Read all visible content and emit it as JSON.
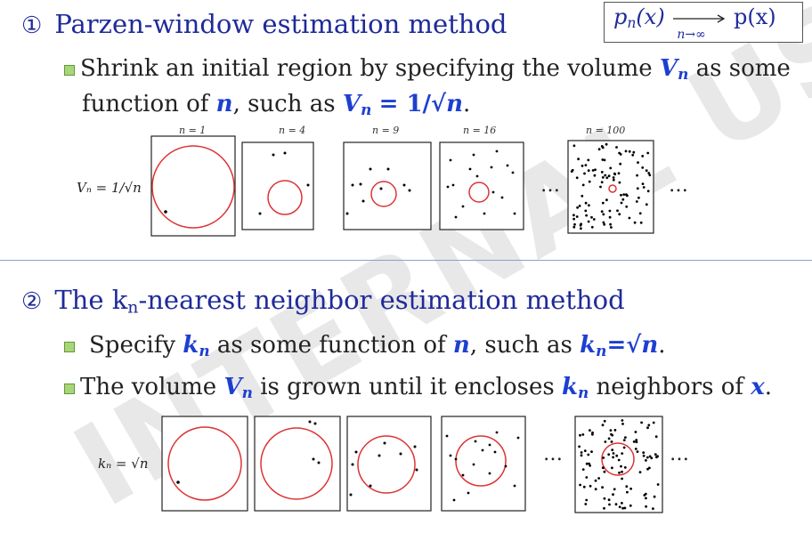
{
  "watermark": "INTERNAL USE",
  "formula": {
    "lhs": "p",
    "lhs_sub": "n",
    "lhs_arg": "(x)",
    "arrow_label": "n→∞",
    "rhs": "p(x)"
  },
  "section1": {
    "number": "①",
    "title": "Parzen-window estimation method",
    "bullet1_a": "Shrink an initial region by specifying the volume",
    "var_V": "V",
    "var_n": "n",
    "bullet1_b": "as some",
    "bullet1_c": "function of",
    "bullet1_d": ", such as",
    "bullet1_eq": "= 1/√",
    "period": ".",
    "row_label": "Vₙ = 1/√n",
    "panel_labels": [
      "n = 1",
      "n = 4",
      "n = 9",
      "n = 16",
      "n = 100"
    ],
    "ellipsis": "…"
  },
  "section2": {
    "number": "②",
    "title_a": "The k",
    "title_sub": "n",
    "title_b": "-nearest  neighbor estimation method",
    "bullet1_a": "Specify",
    "var_k": "k",
    "var_n": "n",
    "bullet1_b": "as some function of",
    "bullet1_c": ",  such as",
    "bullet1_eq": "=√",
    "period": ".",
    "bullet2_a": "The volume",
    "var_V": "V",
    "bullet2_b": "is grown until it encloses",
    "bullet2_c": "neighbors of",
    "var_x": "x",
    "row_label": "kₙ = √n",
    "ellipsis": "…"
  }
}
